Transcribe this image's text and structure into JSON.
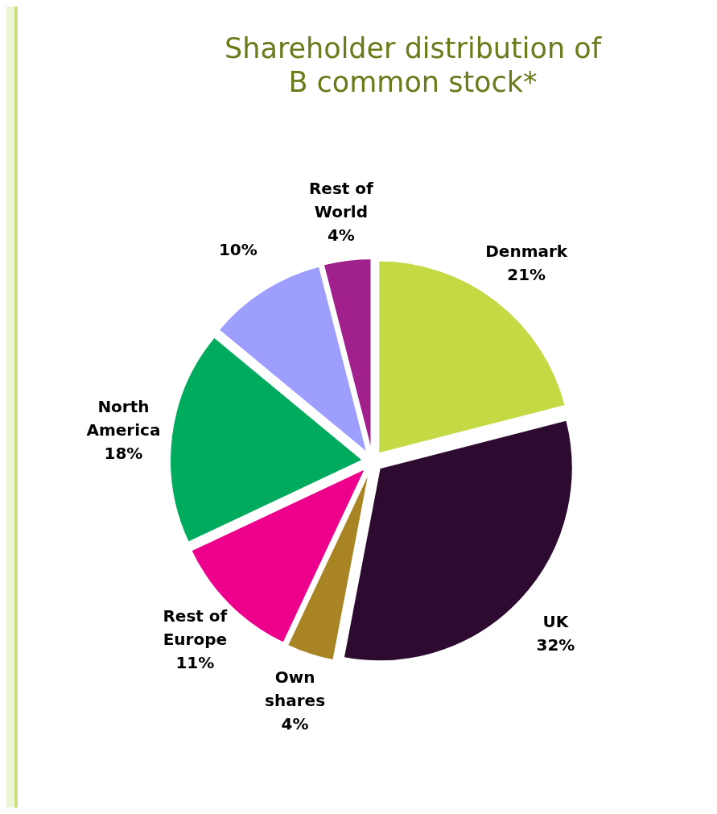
{
  "chart_data": {
    "type": "pie",
    "title": "Shareholder distribution of B common stock*",
    "categories": [
      "Denmark",
      "UK",
      "Own shares",
      "Rest of Europe",
      "North America",
      null,
      "Rest of World"
    ],
    "values": [
      21,
      32,
      4,
      11,
      18,
      10,
      4
    ],
    "colors": [
      "#c5d944",
      "#2d0a30",
      "#a88424",
      "#ec008c",
      "#00ab5e",
      "#9e9eff",
      "#a0218c"
    ],
    "value_labels": [
      "21%",
      "32%",
      "4%",
      "11%",
      "18%",
      "10%",
      "4%"
    ]
  }
}
